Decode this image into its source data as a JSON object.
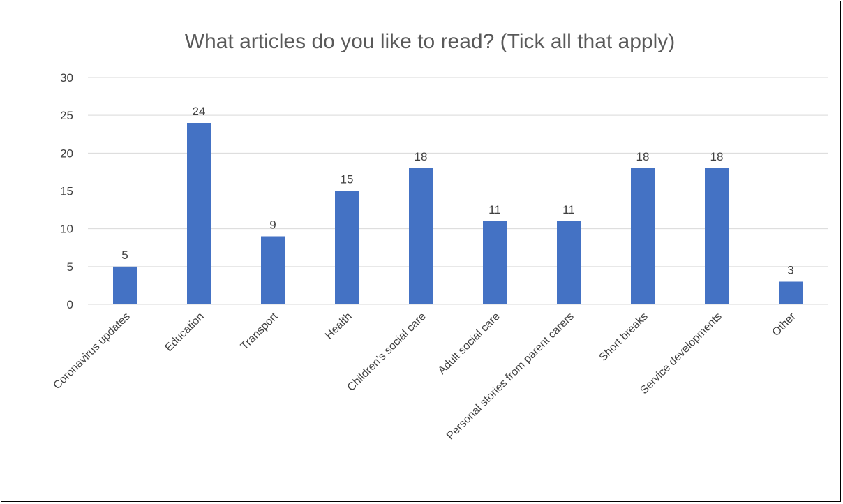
{
  "chart_data": {
    "type": "bar",
    "title": "What articles do you like to read? (Tick all that apply)",
    "xlabel": "",
    "ylabel": "",
    "categories": [
      "Coronavirus updates",
      "Education",
      "Transport",
      "Health",
      "Children's social care",
      "Adult social care",
      "Personal stories from parent carers",
      "Short breaks",
      "Service developments",
      "Other"
    ],
    "values": [
      5,
      24,
      9,
      15,
      18,
      11,
      11,
      18,
      18,
      3
    ],
    "ylim": [
      0,
      30
    ],
    "yticks": [
      0,
      5,
      10,
      15,
      20,
      25,
      30
    ],
    "grid": true,
    "legend": "none",
    "data_labels": true,
    "bar_color": "#4472C4",
    "grid_color": "#D9D9D9"
  }
}
